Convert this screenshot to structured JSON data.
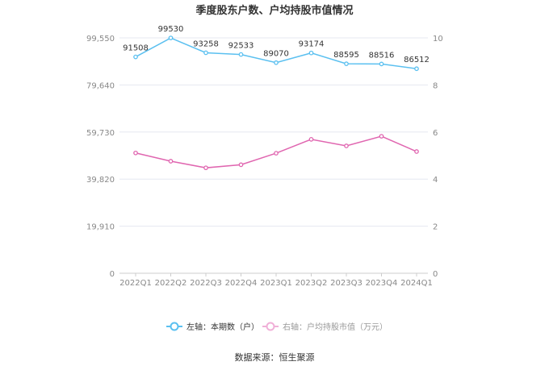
{
  "chart_data": {
    "type": "line",
    "title": "季度股东户数、户均持股市值情况",
    "categories": [
      "2022Q1",
      "2022Q2",
      "2022Q3",
      "2022Q4",
      "2023Q1",
      "2023Q2",
      "2023Q3",
      "2023Q4",
      "2024Q1"
    ],
    "left_axis": {
      "ticks": [
        "0",
        "19,910",
        "39,820",
        "59,730",
        "79,640",
        "99,550"
      ],
      "range": [
        0,
        99550
      ]
    },
    "right_axis": {
      "ticks": [
        "0",
        "2",
        "4",
        "6",
        "8",
        "10"
      ],
      "range": [
        0,
        10
      ]
    },
    "grid": true,
    "legend_position": "bottom",
    "series": [
      {
        "name": "左轴：本期数（户）",
        "axis": "left",
        "color": "#5bc0f0",
        "values": [
          91508,
          99530,
          93258,
          92533,
          89070,
          93174,
          88595,
          88516,
          86512
        ],
        "labels": [
          "91508",
          "99530",
          "93258",
          "92533",
          "89070",
          "93174",
          "88595",
          "88516",
          "86512"
        ]
      },
      {
        "name": "右轴：户均持股市值（万元）",
        "axis": "right",
        "color": "#e066b0",
        "legend_color": "#f0b0d8",
        "values": [
          5.11,
          4.76,
          4.48,
          4.61,
          5.1,
          5.69,
          5.41,
          5.82,
          5.17
        ]
      }
    ],
    "source": "数据来源：恒生聚源"
  }
}
